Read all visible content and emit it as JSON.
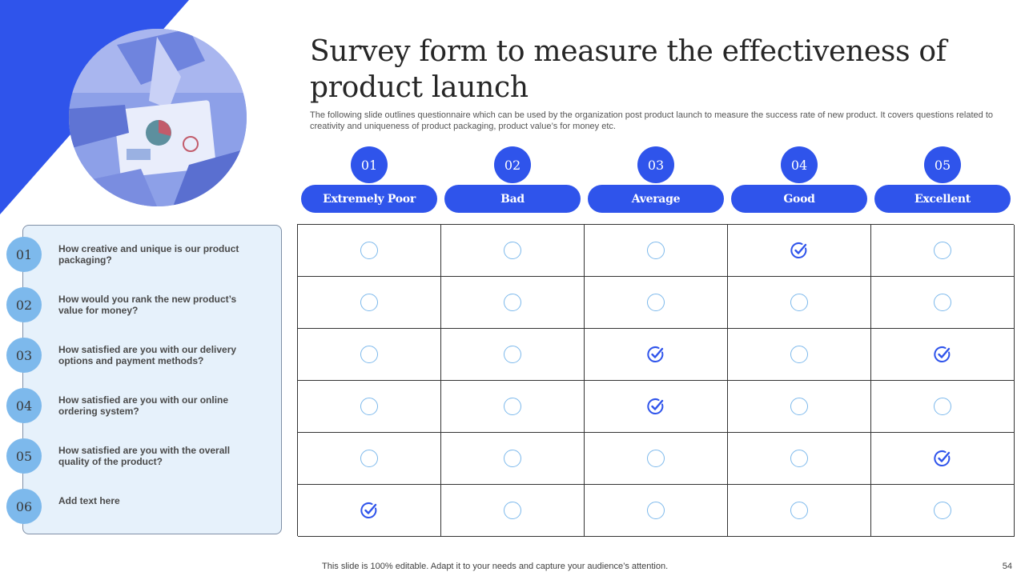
{
  "slide": {
    "title": "Survey form to measure the effectiveness of product launch",
    "subtitle": "The following slide outlines questionnaire which can be used by the organization post product launch to measure the success rate of new product. It covers questions related to creativity and uniqueness of product packaging, product value’s for money etc.",
    "footer_note": "This slide is 100% editable. Adapt it to your needs and capture your audience’s attention.",
    "page_number": "54"
  },
  "colors": {
    "accent": "#2f54eb",
    "light_blue": "#7db9ec",
    "panel_bg": "#e6f1fb"
  },
  "ratings": [
    {
      "num": "01",
      "label": "Extremely Poor"
    },
    {
      "num": "02",
      "label": "Bad"
    },
    {
      "num": "03",
      "label": "Average"
    },
    {
      "num": "04",
      "label": "Good"
    },
    {
      "num": "05",
      "label": "Excellent"
    }
  ],
  "questions": [
    {
      "num": "01",
      "text": "How creative and unique is our product packaging?",
      "selected": [
        4
      ]
    },
    {
      "num": "02",
      "text": "How would you rank the new product’s value for money?",
      "selected": []
    },
    {
      "num": "03",
      "text": "How satisfied are you with our delivery options and payment methods?",
      "selected": [
        3,
        5
      ]
    },
    {
      "num": "04",
      "text": "How satisfied are you with our online ordering system?",
      "selected": [
        3
      ]
    },
    {
      "num": "05",
      "text": "How satisfied are you with the overall quality of the product?",
      "selected": [
        5
      ]
    },
    {
      "num": "06",
      "text": "Add text here",
      "selected": [
        1
      ]
    }
  ],
  "icons": {
    "checked": "check-circle-icon",
    "unchecked": "radio-empty-icon"
  }
}
